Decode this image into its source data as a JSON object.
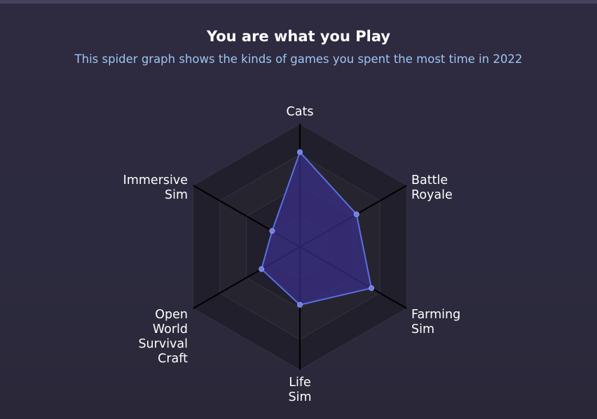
{
  "header": {
    "title": "You are what you Play",
    "subtitle": "This spider graph shows the kinds of games you spent the most time in 2022"
  },
  "colors": {
    "accent_line": "#5b6fe0",
    "accent_fill": "#3a2f8a",
    "ring_band": "#211f2b",
    "ring_inner": "#26242f",
    "axis": "#000000"
  },
  "chart_data": {
    "type": "radar",
    "title": "You are what you Play",
    "subtitle": "This spider graph shows the kinds of games you spent the most time in 2022",
    "axes": [
      "Cats",
      "Battle\nRoyale",
      "Farming\nSim",
      "Life\nSim",
      "Open\nWorld\nSurvival\nCraft",
      "Immersive\nSim"
    ],
    "values": [
      0.77,
      0.53,
      0.67,
      0.47,
      0.36,
      0.26
    ],
    "range": [
      0,
      1
    ],
    "rings": 4,
    "grid": true
  }
}
